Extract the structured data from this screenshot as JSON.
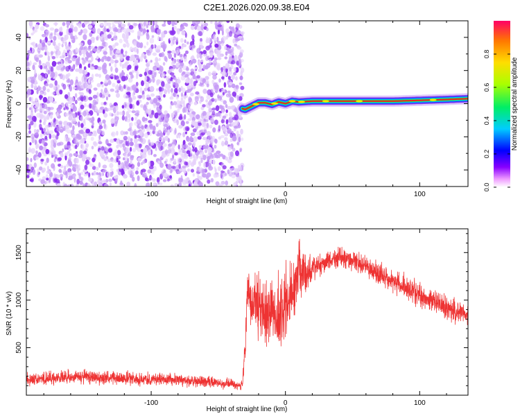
{
  "title": "C2E1.2026.020.09.38.E04",
  "colors": {
    "snr_line": "#ee3333",
    "axis": "#000000",
    "background": "#ffffff",
    "noise_light": "#e6d2fb",
    "noise_mid": "#c79df6",
    "noise_dark": "#8a30ee"
  },
  "chart_data": [
    {
      "type": "heatmap",
      "name": "spectrogram",
      "xlabel": "Height of straight line (km)",
      "ylabel": "Frequency (Hz)",
      "xlim": [
        -193,
        136
      ],
      "ylim": [
        -50,
        50
      ],
      "xticks": [
        -100,
        0,
        100
      ],
      "xtick_labels": [
        "-100",
        "0",
        "100"
      ],
      "yticks": [
        -40,
        -20,
        0,
        20,
        40
      ],
      "ytick_labels": [
        "-40",
        "-20",
        "0",
        "20",
        "40"
      ],
      "noise_region_km": [
        -193,
        -32
      ],
      "signal_track": {
        "x_km": [
          -32,
          -30,
          -25,
          -20,
          -15,
          -10,
          -5,
          0,
          5,
          10,
          20,
          40,
          60,
          80,
          100,
          120,
          136
        ],
        "freq_hz": [
          -3,
          -3.5,
          -1.5,
          0.5,
          0.5,
          -0.5,
          1,
          0,
          1.5,
          1,
          1.5,
          1.5,
          1.5,
          1.5,
          2,
          2.5,
          3
        ]
      },
      "colorbar": {
        "label": "Normalized spectral amplitude",
        "range": [
          0.0,
          1.0
        ],
        "ticks": [
          0.0,
          0.2,
          0.4,
          0.6,
          0.8
        ],
        "tick_labels": [
          "0.0",
          "0.2",
          "0.4",
          "0.6",
          "0.8"
        ]
      }
    },
    {
      "type": "line",
      "name": "snr",
      "xlabel": "Height of straight line (km)",
      "ylabel": "SNR (10 * v/v)",
      "xlim": [
        -193,
        136
      ],
      "ylim": [
        0,
        1750
      ],
      "xticks": [
        -100,
        0,
        100
      ],
      "xtick_labels": [
        "-100",
        "0",
        "100"
      ],
      "yticks": [
        500,
        1000,
        1500
      ],
      "ytick_labels": [
        "500",
        "1000",
        "1500"
      ],
      "envelope": {
        "x_km": [
          -193,
          -170,
          -150,
          -130,
          -100,
          -80,
          -60,
          -40,
          -32,
          -30,
          -28,
          -25,
          -20,
          -15,
          -10,
          -5,
          0,
          5,
          10,
          15,
          20,
          30,
          40,
          50,
          60,
          80,
          100,
          120,
          136
        ],
        "mean": [
          170,
          180,
          195,
          180,
          170,
          160,
          140,
          120,
          100,
          500,
          1100,
          950,
          900,
          850,
          900,
          800,
          950,
          1100,
          1300,
          1250,
          1350,
          1400,
          1450,
          1420,
          1350,
          1200,
          1050,
          920,
          850
        ],
        "noise": [
          60,
          60,
          65,
          60,
          60,
          55,
          50,
          45,
          40,
          200,
          220,
          260,
          300,
          300,
          300,
          320,
          320,
          300,
          260,
          200,
          120,
          90,
          90,
          90,
          90,
          100,
          110,
          110,
          110
        ]
      }
    }
  ]
}
